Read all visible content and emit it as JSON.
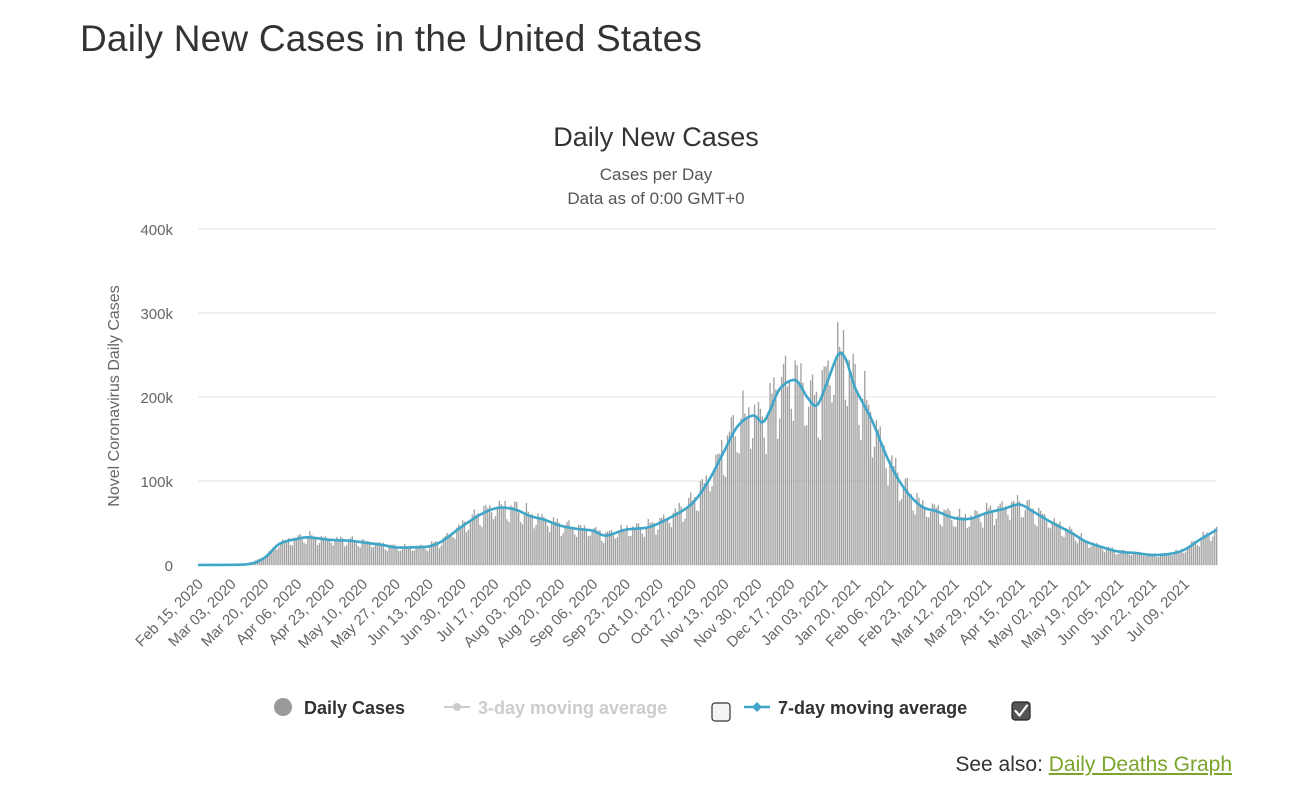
{
  "page": {
    "title": "Daily New Cases in the United States",
    "see_also_label": "See also:",
    "see_also_link": "Daily Deaths Graph"
  },
  "colors": {
    "bars": "#a0a0a0",
    "ma7": "#3fa6c9",
    "ma3_disabled": "#cccccc",
    "grid": "#e6e6e6",
    "link": "#7aa52a"
  },
  "legend": {
    "daily_cases": "Daily Cases",
    "ma3": "3-day moving average",
    "ma7": "7-day moving average",
    "ma3_checked": false,
    "ma7_checked": true
  },
  "chart_data": {
    "type": "bar",
    "title": "Daily New Cases",
    "subtitle": "Cases per Day",
    "subtitle2": "Data as of 0:00 GMT+0",
    "ylabel": "Novel Coronavirus Daily Cases",
    "xlabel": "",
    "ylim": [
      0,
      400000
    ],
    "yticks": [
      0,
      100000,
      200000,
      300000,
      400000
    ],
    "ytick_labels": [
      "0",
      "100k",
      "200k",
      "300k",
      "400k"
    ],
    "grid": true,
    "legend_position": "bottom",
    "x_start": "2020-02-15",
    "x_end": "2021-07-26",
    "xtick_labels": [
      "Feb 15, 2020",
      "Mar 03, 2020",
      "Mar 20, 2020",
      "Apr 06, 2020",
      "Apr 23, 2020",
      "May 10, 2020",
      "May 27, 2020",
      "Jun 13, 2020",
      "Jun 30, 2020",
      "Jul 17, 2020",
      "Aug 03, 2020",
      "Aug 20, 2020",
      "Sep 06, 2020",
      "Sep 23, 2020",
      "Oct 10, 2020",
      "Oct 27, 2020",
      "Nov 13, 2020",
      "Nov 30, 2020",
      "Dec 17, 2020",
      "Jan 03, 2021",
      "Jan 20, 2021",
      "Feb 06, 2021",
      "Feb 23, 2021",
      "Mar 12, 2021",
      "Mar 29, 2021",
      "Apr 15, 2021",
      "May 02, 2021",
      "May 19, 2021",
      "Jun 05, 2021",
      "Jun 22, 2021",
      "Jul 09, 2021"
    ],
    "series": [
      {
        "name": "7-day moving average",
        "points": [
          [
            "2020-02-15",
            0
          ],
          [
            "2020-03-10",
            500
          ],
          [
            "2020-03-20",
            8000
          ],
          [
            "2020-03-28",
            25000
          ],
          [
            "2020-04-06",
            31000
          ],
          [
            "2020-04-12",
            33000
          ],
          [
            "2020-04-23",
            30000
          ],
          [
            "2020-05-03",
            29000
          ],
          [
            "2020-05-10",
            27000
          ],
          [
            "2020-05-20",
            24000
          ],
          [
            "2020-05-27",
            21000
          ],
          [
            "2020-06-05",
            21000
          ],
          [
            "2020-06-13",
            22000
          ],
          [
            "2020-06-20",
            28000
          ],
          [
            "2020-06-30",
            45000
          ],
          [
            "2020-07-10",
            60000
          ],
          [
            "2020-07-19",
            68000
          ],
          [
            "2020-07-28",
            66000
          ],
          [
            "2020-08-05",
            58000
          ],
          [
            "2020-08-12",
            54000
          ],
          [
            "2020-08-20",
            47000
          ],
          [
            "2020-08-29",
            43000
          ],
          [
            "2020-09-06",
            41000
          ],
          [
            "2020-09-13",
            35000
          ],
          [
            "2020-09-23",
            42000
          ],
          [
            "2020-10-05",
            45000
          ],
          [
            "2020-10-15",
            55000
          ],
          [
            "2020-10-27",
            72000
          ],
          [
            "2020-11-05",
            100000
          ],
          [
            "2020-11-13",
            135000
          ],
          [
            "2020-11-20",
            165000
          ],
          [
            "2020-11-28",
            178000
          ],
          [
            "2020-12-03",
            170000
          ],
          [
            "2020-12-07",
            185000
          ],
          [
            "2020-12-12",
            210000
          ],
          [
            "2020-12-20",
            220000
          ],
          [
            "2020-12-26",
            200000
          ],
          [
            "2020-12-31",
            190000
          ],
          [
            "2021-01-05",
            215000
          ],
          [
            "2021-01-11",
            250000
          ],
          [
            "2021-01-15",
            245000
          ],
          [
            "2021-01-20",
            210000
          ],
          [
            "2021-01-28",
            175000
          ],
          [
            "2021-02-06",
            125000
          ],
          [
            "2021-02-14",
            92000
          ],
          [
            "2021-02-23",
            70000
          ],
          [
            "2021-03-03",
            64000
          ],
          [
            "2021-03-12",
            56000
          ],
          [
            "2021-03-20",
            55000
          ],
          [
            "2021-03-29",
            62000
          ],
          [
            "2021-04-07",
            67000
          ],
          [
            "2021-04-15",
            72000
          ],
          [
            "2021-04-23",
            62000
          ],
          [
            "2021-05-02",
            50000
          ],
          [
            "2021-05-12",
            38000
          ],
          [
            "2021-05-19",
            28000
          ],
          [
            "2021-05-28",
            21000
          ],
          [
            "2021-06-05",
            16000
          ],
          [
            "2021-06-15",
            14000
          ],
          [
            "2021-06-22",
            12000
          ],
          [
            "2021-07-01",
            13000
          ],
          [
            "2021-07-09",
            18000
          ],
          [
            "2021-07-17",
            30000
          ],
          [
            "2021-07-26",
            42000
          ]
        ]
      }
    ]
  }
}
